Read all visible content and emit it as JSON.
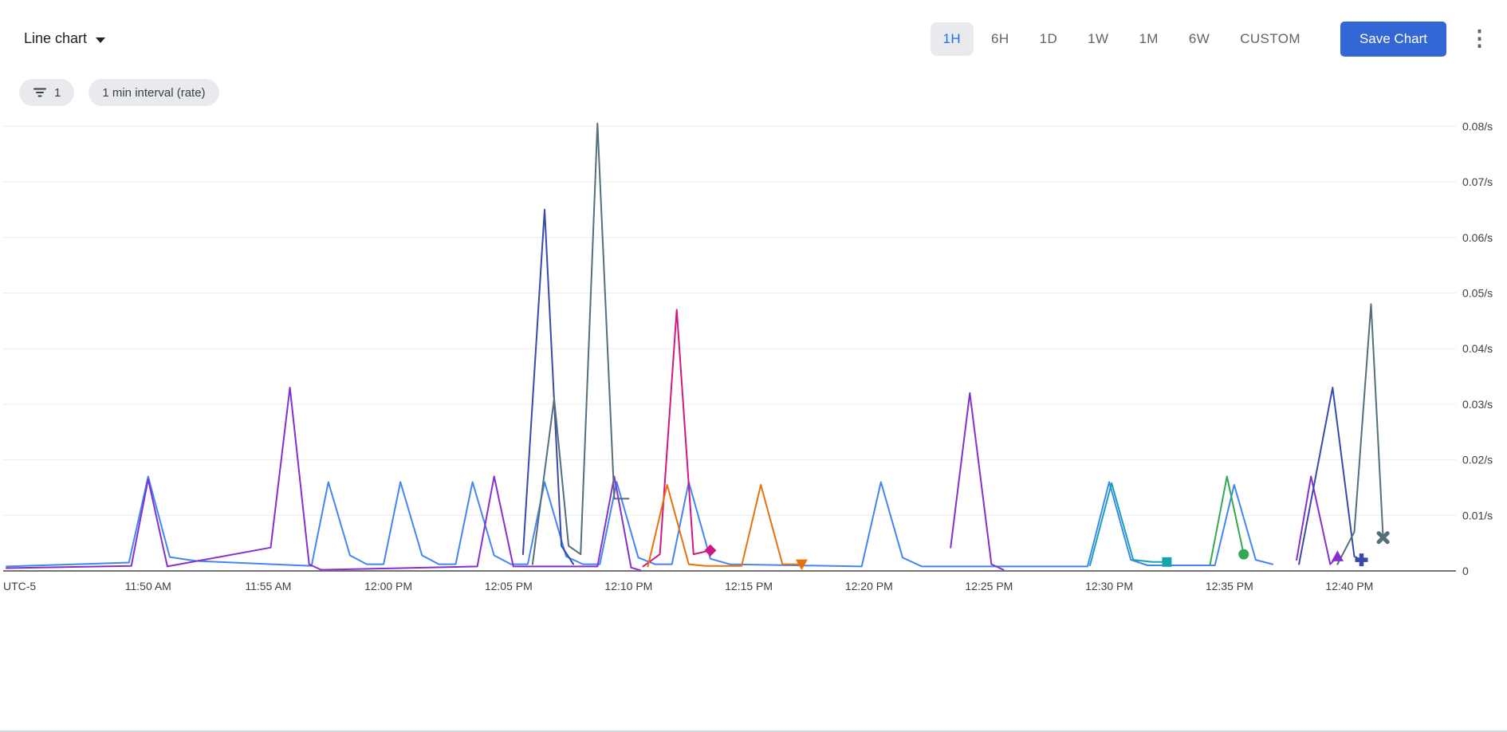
{
  "toolbar": {
    "chart_type_label": "Line chart",
    "time_ranges": [
      "1H",
      "6H",
      "1D",
      "1W",
      "1M",
      "6W",
      "CUSTOM"
    ],
    "selected_range": "1H",
    "save_label": "Save Chart"
  },
  "filters": {
    "filter_chip_count": "1",
    "interval_chip_label": "1 min interval (rate)"
  },
  "colors": {
    "accent_button": "#3367d6",
    "selected_range_bg": "#e8eaed",
    "selected_range_text": "#1a73e8",
    "chip_bg": "#e8eaed",
    "axis_text": "#3c4043",
    "grid": "#ececec",
    "axis_line": "#757575"
  },
  "chart_data": {
    "type": "line",
    "title": "",
    "legend": "none",
    "grid": "horizontal",
    "x_axis": {
      "timezone_label": "UTC-5",
      "unit": "minutes_since_11:45_AM",
      "domain": [
        -0.9,
        59.3
      ],
      "ticks": [
        {
          "m": 5,
          "label": "11:50 AM"
        },
        {
          "m": 10,
          "label": "11:55 AM"
        },
        {
          "m": 15,
          "label": "12:00 PM"
        },
        {
          "m": 20,
          "label": "12:05 PM"
        },
        {
          "m": 25,
          "label": "12:10 PM"
        },
        {
          "m": 30,
          "label": "12:15 PM"
        },
        {
          "m": 35,
          "label": "12:20 PM"
        },
        {
          "m": 40,
          "label": "12:25 PM"
        },
        {
          "m": 45,
          "label": "12:30 PM"
        },
        {
          "m": 50,
          "label": "12:35 PM"
        },
        {
          "m": 55,
          "label": "12:40 PM"
        }
      ]
    },
    "y_axis": {
      "unit": "/s",
      "domain": [
        0,
        0.0812
      ],
      "ticks": [
        {
          "v": 0,
          "label": "0"
        },
        {
          "v": 0.01,
          "label": "0.01/s"
        },
        {
          "v": 0.02,
          "label": "0.02/s"
        },
        {
          "v": 0.03,
          "label": "0.03/s"
        },
        {
          "v": 0.04,
          "label": "0.04/s"
        },
        {
          "v": 0.05,
          "label": "0.05/s"
        },
        {
          "v": 0.06,
          "label": "0.06/s"
        },
        {
          "v": 0.07,
          "label": "0.07/s"
        },
        {
          "v": 0.08,
          "label": "0.08/s"
        }
      ]
    },
    "series": [
      {
        "name": "blue",
        "color": "#4285f4",
        "end_marker": null,
        "segments": [
          [
            [
              -0.9,
              0.0008
            ],
            [
              4.2,
              0.0015
            ],
            [
              5.0,
              0.017
            ],
            [
              5.9,
              0.0025
            ],
            [
              7.0,
              0.0018
            ],
            [
              11.8,
              0.0009
            ],
            [
              12.5,
              0.016
            ],
            [
              13.4,
              0.0028
            ],
            [
              14.1,
              0.0012
            ],
            [
              14.8,
              0.0012
            ],
            [
              15.5,
              0.016
            ],
            [
              16.4,
              0.0028
            ],
            [
              17.1,
              0.0012
            ],
            [
              17.8,
              0.0012
            ],
            [
              18.5,
              0.016
            ],
            [
              19.4,
              0.0028
            ],
            [
              20.1,
              0.0012
            ],
            [
              20.8,
              0.0012
            ],
            [
              21.5,
              0.016
            ],
            [
              22.4,
              0.0026
            ],
            [
              23.1,
              0.0012
            ],
            [
              23.8,
              0.0012
            ],
            [
              24.5,
              0.016
            ],
            [
              25.4,
              0.0024
            ],
            [
              26.1,
              0.0012
            ],
            [
              26.8,
              0.0012
            ],
            [
              27.5,
              0.016
            ],
            [
              28.4,
              0.0022
            ],
            [
              29.2,
              0.0012
            ],
            [
              34.7,
              0.0008
            ],
            [
              35.5,
              0.016
            ],
            [
              36.4,
              0.0024
            ],
            [
              37.2,
              0.0008
            ],
            [
              44.1,
              0.0008
            ],
            [
              45.0,
              0.016
            ],
            [
              45.9,
              0.002
            ],
            [
              46.6,
              0.001
            ],
            [
              49.4,
              0.001
            ],
            [
              50.2,
              0.0155
            ],
            [
              51.1,
              0.002
            ],
            [
              51.8,
              0.0012
            ]
          ]
        ]
      },
      {
        "name": "purple",
        "color": "#8430ce",
        "end_marker": {
          "shape": "triangle-up",
          "point": [
            54.5,
            0.0026
          ]
        },
        "segments": [
          [
            [
              -0.9,
              0.0005
            ],
            [
              4.3,
              0.0009
            ],
            [
              5.0,
              0.0165
            ],
            [
              5.8,
              0.0008
            ],
            [
              10.1,
              0.0042
            ],
            [
              10.9,
              0.033
            ],
            [
              11.7,
              0.0012
            ],
            [
              12.2,
              0.0002
            ],
            [
              18.7,
              0.0008
            ],
            [
              19.4,
              0.017
            ],
            [
              20.2,
              0.0008
            ],
            [
              23.7,
              0.0008
            ],
            [
              24.4,
              0.017
            ],
            [
              25.1,
              0.0006
            ],
            [
              25.5,
              0.0001
            ]
          ],
          [
            [
              38.4,
              0.0042
            ],
            [
              39.2,
              0.032
            ],
            [
              40.1,
              0.0012
            ],
            [
              40.6,
              0.0002
            ]
          ],
          [
            [
              52.8,
              0.002
            ],
            [
              53.4,
              0.017
            ],
            [
              54.2,
              0.0012
            ],
            [
              54.5,
              0.0026
            ]
          ]
        ]
      },
      {
        "name": "indigo",
        "color": "#3949ab",
        "end_marker": {
          "shape": "plus",
          "point": [
            55.5,
            0.002
          ]
        },
        "segments": [
          [
            [
              20.6,
              0.003
            ],
            [
              21.5,
              0.065
            ],
            [
              22.2,
              0.0045
            ],
            [
              22.7,
              0.0012
            ]
          ],
          [
            [
              52.9,
              0.0012
            ],
            [
              54.3,
              0.033
            ],
            [
              55.2,
              0.0026
            ],
            [
              55.5,
              0.002
            ]
          ]
        ]
      },
      {
        "name": "slate",
        "color": "#546e7a",
        "end_marker": {
          "shape": "x",
          "point": [
            56.4,
            0.006
          ]
        },
        "segments": [
          [
            [
              21.0,
              0.0012
            ],
            [
              21.9,
              0.031
            ],
            [
              22.5,
              0.0045
            ],
            [
              23.0,
              0.003
            ],
            [
              23.7,
              0.0805
            ],
            [
              24.4,
              0.013
            ],
            [
              25.0,
              0.013
            ]
          ],
          [
            [
              54.5,
              0.0012
            ],
            [
              55.2,
              0.007
            ],
            [
              55.9,
              0.048
            ],
            [
              56.4,
              0.006
            ]
          ]
        ]
      },
      {
        "name": "pink",
        "color": "#d01884",
        "end_marker": {
          "shape": "diamond",
          "point": [
            28.4,
            0.0037
          ]
        },
        "segments": [
          [
            [
              25.6,
              0.0008
            ],
            [
              26.3,
              0.003
            ],
            [
              27.0,
              0.047
            ],
            [
              27.7,
              0.003
            ],
            [
              28.4,
              0.0037
            ]
          ]
        ]
      },
      {
        "name": "orange",
        "color": "#e8710a",
        "end_marker": {
          "shape": "triangle-down",
          "point": [
            32.2,
            0.0012
          ]
        },
        "segments": [
          [
            [
              25.8,
              0.0008
            ],
            [
              26.6,
              0.0155
            ],
            [
              27.5,
              0.0012
            ],
            [
              28.2,
              0.0009
            ],
            [
              29.7,
              0.0009
            ],
            [
              30.5,
              0.0155
            ],
            [
              31.4,
              0.0012
            ],
            [
              32.2,
              0.0012
            ]
          ]
        ]
      },
      {
        "name": "teal",
        "color": "#12a4af",
        "end_marker": {
          "shape": "square",
          "point": [
            47.4,
            0.0016
          ]
        },
        "segments": [
          [
            [
              44.2,
              0.001
            ],
            [
              45.1,
              0.0158
            ],
            [
              46.0,
              0.002
            ],
            [
              46.8,
              0.0016
            ],
            [
              47.4,
              0.0016
            ]
          ]
        ]
      },
      {
        "name": "green",
        "color": "#34a853",
        "end_marker": {
          "shape": "circle",
          "point": [
            50.6,
            0.003
          ]
        },
        "segments": [
          [
            [
              49.2,
              0.0012
            ],
            [
              49.9,
              0.017
            ],
            [
              50.6,
              0.003
            ]
          ]
        ]
      }
    ]
  }
}
